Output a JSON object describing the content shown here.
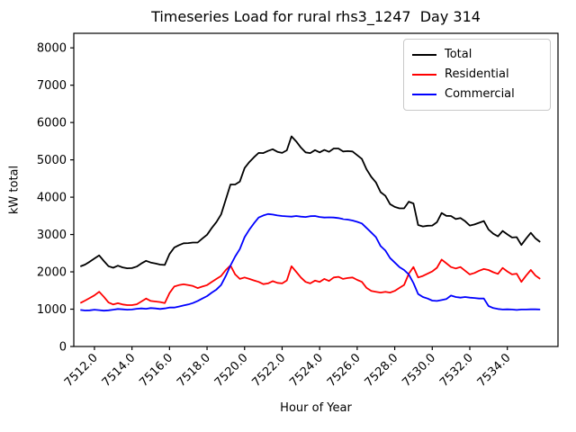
{
  "chart_data": {
    "type": "line",
    "title": "Timeseries Load for rural rhs3_1247  Day 314",
    "xlabel": "Hour of Year",
    "ylabel": "kW total",
    "xlim": [
      7510.9,
      7536.7
    ],
    "ylim": [
      0,
      8390
    ],
    "grid": false,
    "legend": {
      "position": "upper right",
      "entries": [
        "Total",
        "Residential",
        "Commercial"
      ]
    },
    "xticks": {
      "values": [
        7512,
        7514,
        7516,
        7518,
        7520,
        7522,
        7524,
        7526,
        7528,
        7530,
        7532,
        7534
      ],
      "labels": [
        "7512.0",
        "7514.0",
        "7516.0",
        "7518.0",
        "7520.0",
        "7522.0",
        "7524.0",
        "7526.0",
        "7528.0",
        "7530.0",
        "7532.0",
        "7534.0"
      ],
      "rotation": 45
    },
    "yticks": {
      "values": [
        0,
        1000,
        2000,
        3000,
        4000,
        5000,
        6000,
        7000,
        8000
      ],
      "labels": [
        "0",
        "1000",
        "2000",
        "3000",
        "4000",
        "5000",
        "6000",
        "7000",
        "8000"
      ]
    },
    "x": [
      7511.25,
      7511.5,
      7511.75,
      7512.0,
      7512.25,
      7512.5,
      7512.75,
      7513.0,
      7513.25,
      7513.5,
      7513.75,
      7514.0,
      7514.25,
      7514.5,
      7514.75,
      7515.0,
      7515.25,
      7515.5,
      7515.75,
      7516.0,
      7516.25,
      7516.5,
      7516.75,
      7517.0,
      7517.25,
      7517.5,
      7517.75,
      7518.0,
      7518.25,
      7518.5,
      7518.75,
      7519.0,
      7519.25,
      7519.5,
      7519.75,
      7520.0,
      7520.25,
      7520.5,
      7520.75,
      7521.0,
      7521.25,
      7521.5,
      7521.75,
      7522.0,
      7522.25,
      7522.5,
      7522.75,
      7523.0,
      7523.25,
      7523.5,
      7523.75,
      7524.0,
      7524.25,
      7524.5,
      7524.75,
      7525.0,
      7525.25,
      7525.5,
      7525.75,
      7526.0,
      7526.25,
      7526.5,
      7526.75,
      7527.0,
      7527.25,
      7527.5,
      7527.75,
      7528.0,
      7528.25,
      7528.5,
      7528.75,
      7529.0,
      7529.25,
      7529.5,
      7529.75,
      7530.0,
      7530.25,
      7530.5,
      7530.75,
      7531.0,
      7531.25,
      7531.5,
      7531.75,
      7532.0,
      7532.25,
      7532.5,
      7532.75,
      7533.0,
      7533.25,
      7533.5,
      7533.75,
      7534.0,
      7534.25,
      7534.5,
      7534.75,
      7535.0,
      7535.25,
      7535.5,
      7535.75
    ],
    "series": [
      {
        "name": "Total",
        "color": "#000000",
        "values": [
          2145,
          2195,
          2270,
          2355,
          2440,
          2290,
          2150,
          2110,
          2165,
          2120,
          2095,
          2100,
          2140,
          2225,
          2295,
          2250,
          2225,
          2195,
          2185,
          2475,
          2650,
          2715,
          2765,
          2770,
          2785,
          2785,
          2890,
          2995,
          3175,
          3335,
          3540,
          3940,
          4340,
          4340,
          4420,
          4780,
          4940,
          5070,
          5185,
          5180,
          5240,
          5285,
          5215,
          5185,
          5255,
          5630,
          5495,
          5330,
          5200,
          5180,
          5260,
          5200,
          5265,
          5215,
          5305,
          5305,
          5225,
          5235,
          5225,
          5125,
          5025,
          4745,
          4545,
          4395,
          4135,
          4035,
          3815,
          3740,
          3700,
          3700,
          3880,
          3830,
          3255,
          3215,
          3235,
          3240,
          3330,
          3575,
          3500,
          3495,
          3415,
          3440,
          3355,
          3240,
          3270,
          3315,
          3360,
          3135,
          3020,
          2950,
          3095,
          3005,
          2920,
          2930,
          2720,
          2890,
          3045,
          2895,
          2800
        ]
      },
      {
        "name": "Residential",
        "color": "#ff0000",
        "values": [
          1165,
          1230,
          1300,
          1370,
          1465,
          1330,
          1180,
          1125,
          1160,
          1125,
          1110,
          1110,
          1130,
          1205,
          1285,
          1220,
          1205,
          1190,
          1165,
          1430,
          1605,
          1645,
          1665,
          1645,
          1620,
          1565,
          1605,
          1645,
          1730,
          1810,
          1890,
          2050,
          2170,
          1930,
          1810,
          1850,
          1810,
          1770,
          1730,
          1670,
          1690,
          1750,
          1705,
          1690,
          1770,
          2150,
          2000,
          1850,
          1730,
          1690,
          1765,
          1730,
          1810,
          1755,
          1850,
          1865,
          1810,
          1835,
          1850,
          1785,
          1730,
          1570,
          1490,
          1465,
          1445,
          1465,
          1445,
          1490,
          1570,
          1650,
          1950,
          2130,
          1850,
          1890,
          1950,
          2010,
          2110,
          2330,
          2230,
          2130,
          2090,
          2130,
          2030,
          1930,
          1970,
          2030,
          2075,
          2050,
          1990,
          1945,
          2105,
          2010,
          1930,
          1950,
          1730,
          1900,
          2050,
          1900,
          1810
        ]
      },
      {
        "name": "Commercial",
        "color": "#0000ff",
        "values": [
          980,
          965,
          970,
          985,
          975,
          960,
          970,
          985,
          1005,
          995,
          985,
          990,
          1010,
          1020,
          1010,
          1030,
          1020,
          1005,
          1020,
          1045,
          1045,
          1070,
          1100,
          1125,
          1165,
          1220,
          1285,
          1350,
          1445,
          1525,
          1650,
          1890,
          2170,
          2410,
          2610,
          2930,
          3130,
          3300,
          3455,
          3510,
          3550,
          3535,
          3510,
          3495,
          3485,
          3480,
          3495,
          3480,
          3470,
          3490,
          3495,
          3470,
          3455,
          3460,
          3455,
          3440,
          3415,
          3400,
          3375,
          3340,
          3295,
          3175,
          3055,
          2930,
          2690,
          2570,
          2370,
          2250,
          2130,
          2050,
          1930,
          1700,
          1405,
          1325,
          1285,
          1230,
          1220,
          1245,
          1270,
          1365,
          1325,
          1310,
          1325,
          1310,
          1300,
          1285,
          1285,
          1085,
          1030,
          1005,
          990,
          995,
          990,
          980,
          990,
          990,
          995,
          995,
          990
        ]
      }
    ]
  }
}
